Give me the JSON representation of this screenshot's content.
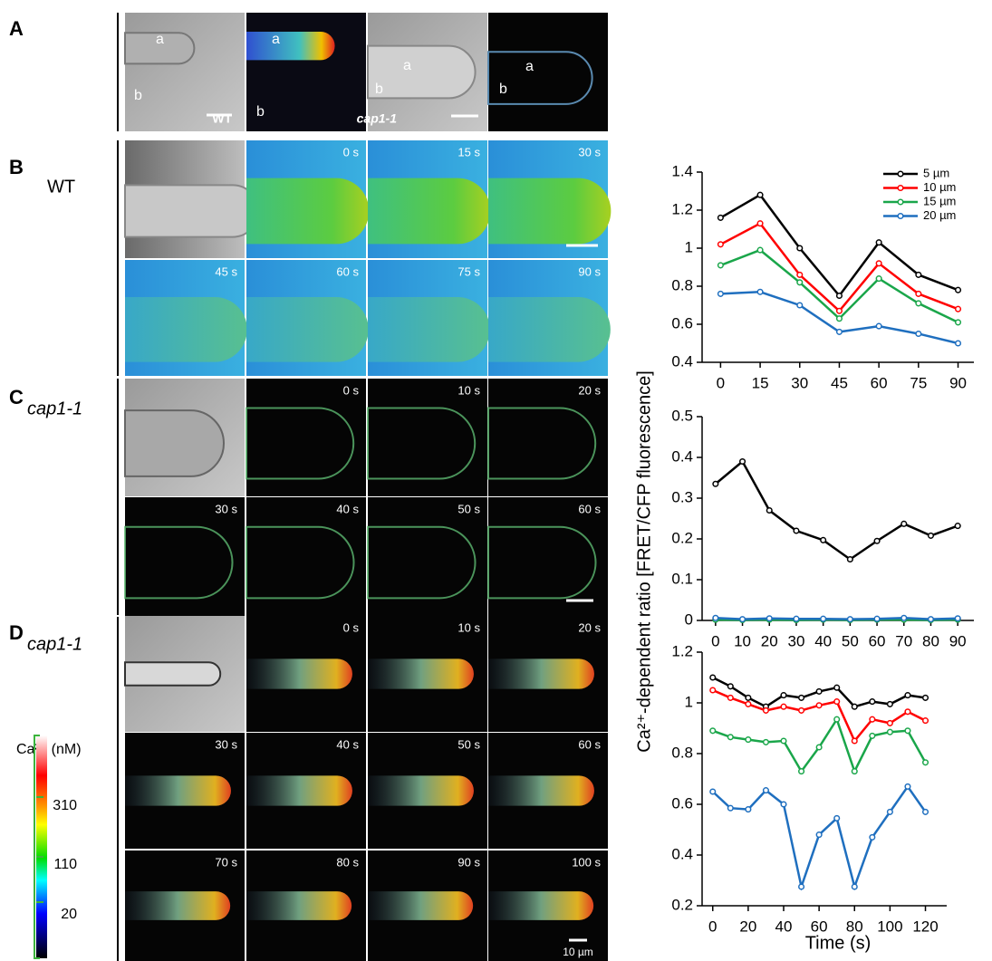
{
  "panel_a": {
    "label": "A",
    "tiles": [
      [
        "a",
        "b",
        "WT"
      ],
      [
        "a",
        "b"
      ],
      [
        "a",
        "b",
        "cap1-1"
      ],
      [
        "a",
        "b"
      ]
    ]
  },
  "panel_b": {
    "label": "B",
    "genotype": "WT",
    "times": [
      "0 s",
      "15 s",
      "30 s",
      "45 s",
      "60 s",
      "75 s",
      "90 s"
    ]
  },
  "panel_c": {
    "label": "C",
    "genotype": "cap1-1",
    "times": [
      "0 s",
      "10 s",
      "20 s",
      "30 s",
      "40 s",
      "50 s",
      "60 s"
    ]
  },
  "panel_d": {
    "label": "D",
    "genotype": "cap1-1",
    "times": [
      "0 s",
      "10 s",
      "20 s",
      "30 s",
      "40 s",
      "50 s",
      "60 s",
      "70 s",
      "80 s",
      "90 s",
      "100 s"
    ],
    "scale_bar": "10 µm"
  },
  "colorbar": {
    "title": "Ca²⁺ (nM)",
    "ticks": [
      310,
      110,
      20
    ]
  },
  "chart_data": [
    {
      "type": "line",
      "x": [
        0,
        15,
        30,
        45,
        60,
        75,
        90
      ],
      "xlim": [
        -7,
        96
      ],
      "xticks": [
        0,
        15,
        30,
        45,
        60,
        75,
        90
      ],
      "ylim": [
        0.4,
        1.4
      ],
      "yticks": [
        0.4,
        0.6,
        0.8,
        1,
        1.2,
        1.4
      ],
      "legend": "top-right",
      "series": [
        {
          "name": "5 µm",
          "color": "#000000",
          "values": [
            1.16,
            1.28,
            1.0,
            0.75,
            1.03,
            0.86,
            0.78
          ]
        },
        {
          "name": "10 µm",
          "color": "#ff0000",
          "values": [
            1.02,
            1.13,
            0.86,
            0.67,
            0.92,
            0.76,
            0.68
          ]
        },
        {
          "name": "15 µm",
          "color": "#1aa64a",
          "values": [
            0.91,
            0.99,
            0.82,
            0.63,
            0.84,
            0.71,
            0.61
          ]
        },
        {
          "name": "20 µm",
          "color": "#1f6fbf",
          "values": [
            0.76,
            0.77,
            0.7,
            0.56,
            0.59,
            0.55,
            0.5
          ]
        }
      ]
    },
    {
      "type": "line",
      "x": [
        0,
        10,
        20,
        30,
        40,
        50,
        60,
        70,
        80,
        90
      ],
      "xlim": [
        -5,
        96
      ],
      "xticks": [
        0,
        10,
        20,
        30,
        40,
        50,
        60,
        70,
        80,
        90
      ],
      "ylim": [
        0,
        0.5
      ],
      "yticks": [
        0,
        0.1,
        0.2,
        0.3,
        0.4,
        0.5
      ],
      "ylabel": "Ca²⁺-dependent ratio [FRET/CFP fluorescence]",
      "series": [
        {
          "color": "#000000",
          "values": [
            0.335,
            0.39,
            0.27,
            0.22,
            0.197,
            0.15,
            0.195,
            0.237,
            0.208,
            0.232
          ]
        },
        {
          "color": "#ff0000",
          "values": [
            0.004,
            0.002,
            0.003,
            0.002,
            0.003,
            0.002,
            0.003,
            0.004,
            0.002,
            0.003
          ]
        },
        {
          "color": "#1aa64a",
          "values": [
            0.002,
            0.001,
            0.002,
            0.001,
            0.002,
            0.001,
            0.002,
            0.002,
            0.001,
            0.002
          ]
        },
        {
          "color": "#1f6fbf",
          "values": [
            0.006,
            0.003,
            0.005,
            0.004,
            0.004,
            0.003,
            0.004,
            0.006,
            0.003,
            0.005
          ]
        }
      ]
    },
    {
      "type": "line",
      "x": [
        0,
        10,
        20,
        30,
        40,
        50,
        60,
        70,
        80,
        90,
        100,
        110,
        120
      ],
      "xlim": [
        -6,
        132
      ],
      "xticks": [
        0,
        20,
        40,
        60,
        80,
        100,
        120
      ],
      "ylim": [
        0.2,
        1.2
      ],
      "yticks": [
        0.2,
        0.4,
        0.6,
        0.8,
        1,
        1.2
      ],
      "xlabel": "Time (s)",
      "series": [
        {
          "color": "#000000",
          "values": [
            1.1,
            1.065,
            1.02,
            0.985,
            1.03,
            1.02,
            1.045,
            1.06,
            0.985,
            1.005,
            0.995,
            1.03,
            1.02
          ]
        },
        {
          "color": "#ff0000",
          "values": [
            1.05,
            1.02,
            0.995,
            0.97,
            0.985,
            0.97,
            0.99,
            1.005,
            0.85,
            0.935,
            0.92,
            0.965,
            0.93
          ]
        },
        {
          "color": "#1aa64a",
          "values": [
            0.89,
            0.865,
            0.855,
            0.845,
            0.85,
            0.73,
            0.825,
            0.935,
            0.73,
            0.87,
            0.885,
            0.89,
            0.765
          ]
        },
        {
          "color": "#1f6fbf",
          "values": [
            0.65,
            0.585,
            0.58,
            0.655,
            0.6,
            0.275,
            0.48,
            0.545,
            0.275,
            0.47,
            0.57,
            0.67,
            0.57
          ]
        }
      ]
    }
  ]
}
